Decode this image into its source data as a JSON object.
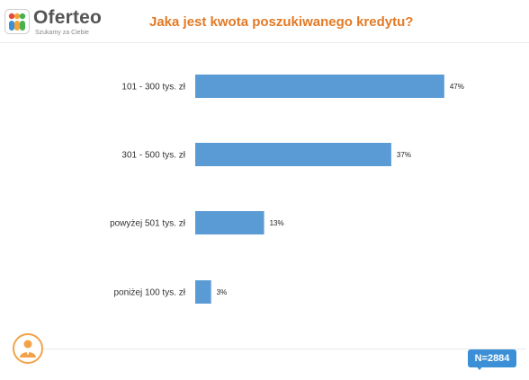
{
  "brand": {
    "name": "Oferteo",
    "tagline": "Szukamy za Ciebie"
  },
  "sample": {
    "label": "N=2884"
  },
  "colors": {
    "title": "#e37a26",
    "bar": "#5b9bd5",
    "badge": "#3b8fd6",
    "accent_ring": "#f2a24a"
  },
  "icons": {
    "logo": "oferteo-people-logo",
    "respondent": "person-icon"
  },
  "chart_data": {
    "type": "bar",
    "orientation": "horizontal",
    "title": "Jaka jest kwota poszukiwanego kredytu?",
    "categories": [
      "101 - 300 tys. zł",
      "301 - 500 tys. zł",
      "powyżej 501 tys. zł",
      "poniżej 100 tys. zł"
    ],
    "values": [
      47,
      37,
      13,
      3
    ],
    "value_labels": [
      "47%",
      "37%",
      "13%",
      "3%"
    ],
    "unit": "%",
    "xlim": [
      0,
      100
    ],
    "grid": false,
    "legend": "none"
  }
}
